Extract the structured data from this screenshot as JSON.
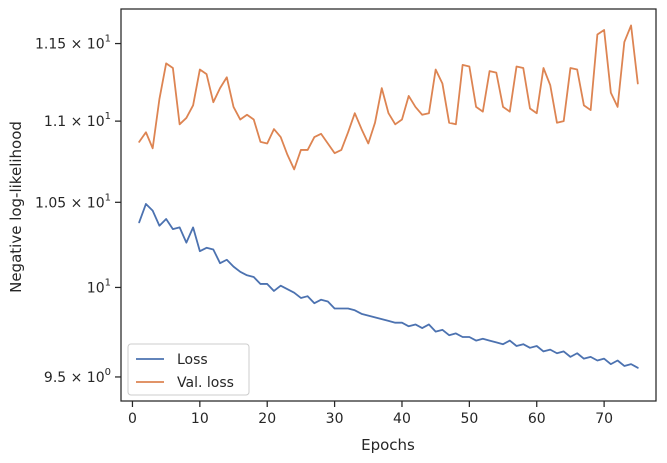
{
  "chart_data": {
    "type": "line",
    "title": "",
    "xlabel": "Epochs",
    "ylabel": "Negative log-likelihood",
    "yscale": "log",
    "xlim": [
      -1.7,
      77.7
    ],
    "ylim": [
      9.37,
      11.73
    ],
    "x_ticks": [
      0,
      10,
      20,
      30,
      40,
      50,
      60,
      70
    ],
    "y_ticks": [
      {
        "value": 9.5,
        "base": "9.5 × 10",
        "exp": "0"
      },
      {
        "value": 10.0,
        "base": "10",
        "exp": "1"
      },
      {
        "value": 10.5,
        "base": "1.05 × 10",
        "exp": "1"
      },
      {
        "value": 11.0,
        "base": "1.1 × 10",
        "exp": "1"
      },
      {
        "value": 11.5,
        "base": "1.15 × 10",
        "exp": "1"
      }
    ],
    "grid": false,
    "legend_position": "lower-left",
    "series": [
      {
        "name": "Loss",
        "color": "#4c72b0",
        "x": [
          1,
          2,
          3,
          4,
          5,
          6,
          7,
          8,
          9,
          10,
          11,
          12,
          13,
          14,
          15,
          16,
          17,
          18,
          19,
          20,
          21,
          22,
          23,
          24,
          25,
          26,
          27,
          28,
          29,
          30,
          31,
          32,
          33,
          34,
          35,
          36,
          37,
          38,
          39,
          40,
          41,
          42,
          43,
          44,
          45,
          46,
          47,
          48,
          49,
          50,
          51,
          52,
          53,
          54,
          55,
          56,
          57,
          58,
          59,
          60,
          61,
          62,
          63,
          64,
          65,
          66,
          67,
          68,
          69,
          70,
          71,
          72,
          73,
          74,
          75
        ],
        "values": [
          10.38,
          10.49,
          10.45,
          10.36,
          10.4,
          10.34,
          10.35,
          10.26,
          10.35,
          10.21,
          10.23,
          10.22,
          10.14,
          10.16,
          10.12,
          10.09,
          10.07,
          10.06,
          10.02,
          10.02,
          9.98,
          10.01,
          9.99,
          9.97,
          9.94,
          9.95,
          9.91,
          9.93,
          9.92,
          9.88,
          9.88,
          9.88,
          9.87,
          9.85,
          9.84,
          9.83,
          9.82,
          9.81,
          9.8,
          9.8,
          9.78,
          9.79,
          9.77,
          9.79,
          9.75,
          9.76,
          9.73,
          9.74,
          9.72,
          9.72,
          9.7,
          9.71,
          9.7,
          9.69,
          9.68,
          9.7,
          9.67,
          9.68,
          9.66,
          9.67,
          9.64,
          9.65,
          9.63,
          9.64,
          9.61,
          9.63,
          9.6,
          9.61,
          9.59,
          9.6,
          9.57,
          9.59,
          9.56,
          9.57,
          9.55
        ]
      },
      {
        "name": "Val. loss",
        "color": "#dd8452",
        "x": [
          1,
          2,
          3,
          4,
          5,
          6,
          7,
          8,
          9,
          10,
          11,
          12,
          13,
          14,
          15,
          16,
          17,
          18,
          19,
          20,
          21,
          22,
          23,
          24,
          25,
          26,
          27,
          28,
          29,
          30,
          31,
          32,
          33,
          34,
          35,
          36,
          37,
          38,
          39,
          40,
          41,
          42,
          43,
          44,
          45,
          46,
          47,
          48,
          49,
          50,
          51,
          52,
          53,
          54,
          55,
          56,
          57,
          58,
          59,
          60,
          61,
          62,
          63,
          64,
          65,
          66,
          67,
          68,
          69,
          70,
          71,
          72,
          73,
          74,
          75
        ],
        "values": [
          10.87,
          10.93,
          10.83,
          11.14,
          11.37,
          11.34,
          10.98,
          11.02,
          11.1,
          11.33,
          11.3,
          11.12,
          11.21,
          11.28,
          11.09,
          11.01,
          11.04,
          11.01,
          10.87,
          10.86,
          10.95,
          10.9,
          10.79,
          10.7,
          10.82,
          10.82,
          10.9,
          10.92,
          10.86,
          10.8,
          10.82,
          10.93,
          11.05,
          10.95,
          10.86,
          10.99,
          11.21,
          11.05,
          10.98,
          11.01,
          11.16,
          11.09,
          11.04,
          11.05,
          11.33,
          11.24,
          10.99,
          10.98,
          11.36,
          11.35,
          11.09,
          11.06,
          11.32,
          11.31,
          11.09,
          11.06,
          11.35,
          11.34,
          11.08,
          11.05,
          11.34,
          11.23,
          10.99,
          11.0,
          11.34,
          11.33,
          11.1,
          11.07,
          11.56,
          11.59,
          11.18,
          11.09,
          11.51,
          11.62,
          11.24
        ]
      }
    ]
  }
}
